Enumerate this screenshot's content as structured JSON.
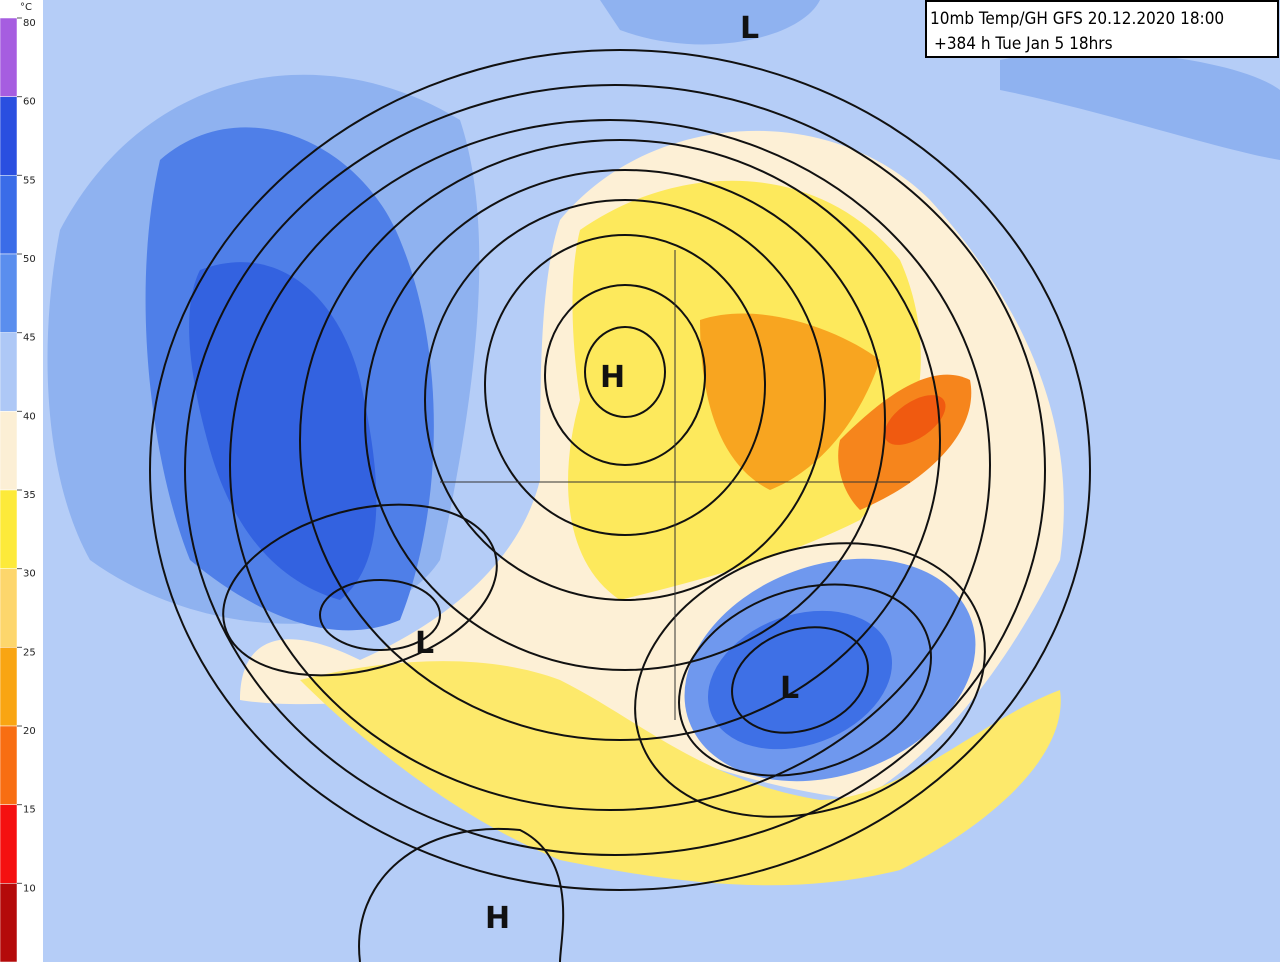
{
  "header": {
    "line1": "10mb Temp/GH GFS 20.12.2020 18:00",
    "line2": "+384 h Tue Jan 5 18hrs"
  },
  "legend": {
    "unit": "°C",
    "labels": [
      "80",
      "60",
      "55",
      "50",
      "45",
      "40",
      "35",
      "30",
      "25",
      "20",
      "15",
      "10"
    ]
  },
  "pressure_labels": [
    "L",
    "H",
    "L",
    "L",
    "H"
  ]
}
